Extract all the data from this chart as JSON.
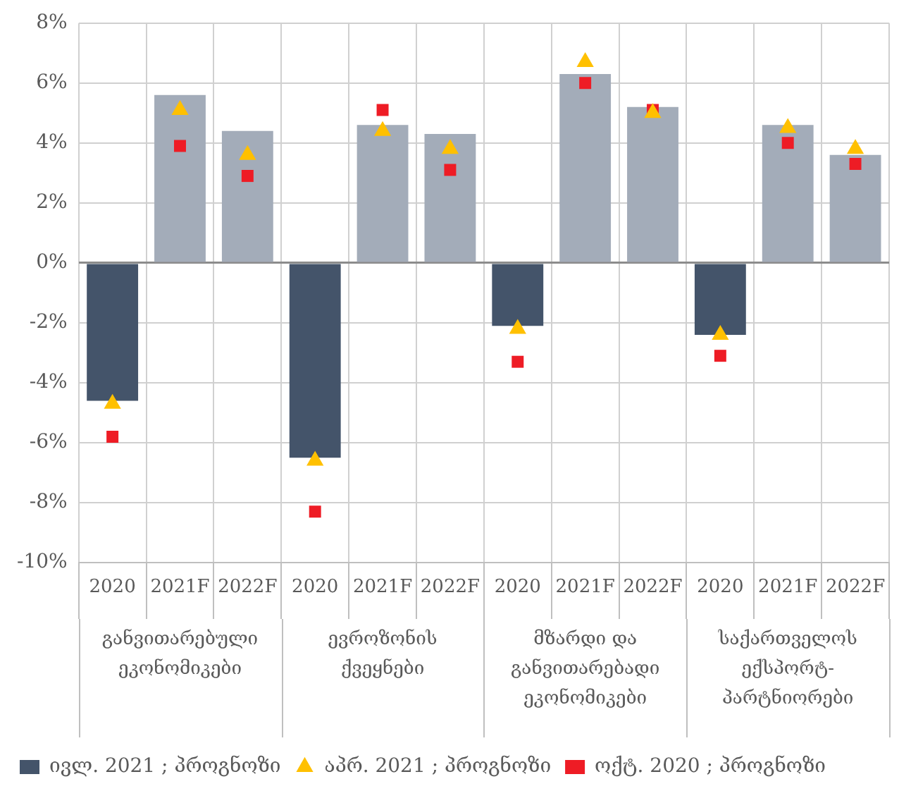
{
  "chart_data": {
    "type": "bar",
    "categories": [
      "2020",
      "2021F",
      "2022F",
      "2020",
      "2021F",
      "2022F",
      "2020",
      "2021F",
      "2022F",
      "2020",
      "2021F",
      "2022F"
    ],
    "annotations": [
      "განვითარებული ეკონომიკები",
      "ევროზონის ქვეყნები",
      "მზარდი და განვითარებადი ეკონომიკები",
      "საქართველოს ექსპორტ-პარტნიორები"
    ],
    "series": [
      {
        "name": "ივლ. 2021 ; პროგნოზი",
        "type": "bar",
        "color": "#44546a",
        "colors": [
          "#44546a",
          "#a3acb9",
          "#a3acb9",
          "#44546a",
          "#a3acb9",
          "#a3acb9",
          "#44546a",
          "#a3acb9",
          "#a3acb9",
          "#44546a",
          "#a3acb9",
          "#a3acb9"
        ],
        "values": [
          -4.6,
          5.6,
          4.4,
          -6.5,
          4.6,
          4.3,
          -2.1,
          6.3,
          5.2,
          -2.4,
          4.6,
          3.6
        ]
      },
      {
        "name": "აპრ. 2021 ; პროგნოზი",
        "type": "scatter",
        "marker": "triangle",
        "color": "#ffc000",
        "values": [
          -4.7,
          5.1,
          3.6,
          -6.6,
          4.4,
          3.8,
          -2.2,
          6.7,
          5.0,
          -2.4,
          4.5,
          3.8
        ]
      },
      {
        "name": "ოქტ. 2020 ; პროგნოზი",
        "type": "scatter",
        "marker": "square",
        "color": "#ee1c25",
        "values": [
          -5.8,
          3.9,
          2.9,
          -8.3,
          5.1,
          3.1,
          -3.3,
          6.0,
          5.1,
          -3.1,
          4.0,
          3.3
        ]
      }
    ],
    "ylim": [
      -10,
      8
    ],
    "yticks": [
      {
        "value": -10,
        "label": "-10%"
      },
      {
        "value": -8,
        "label": "-8%"
      },
      {
        "value": -6,
        "label": "-6%"
      },
      {
        "value": -4,
        "label": "-4%"
      },
      {
        "value": -2,
        "label": "-2%"
      },
      {
        "value": 0,
        "label": "0%"
      },
      {
        "value": 2,
        "label": "2%"
      },
      {
        "value": 4,
        "label": "4%"
      },
      {
        "value": 6,
        "label": "6%"
      },
      {
        "value": 8,
        "label": "8%"
      }
    ],
    "grid": true,
    "legend": "bottom"
  }
}
